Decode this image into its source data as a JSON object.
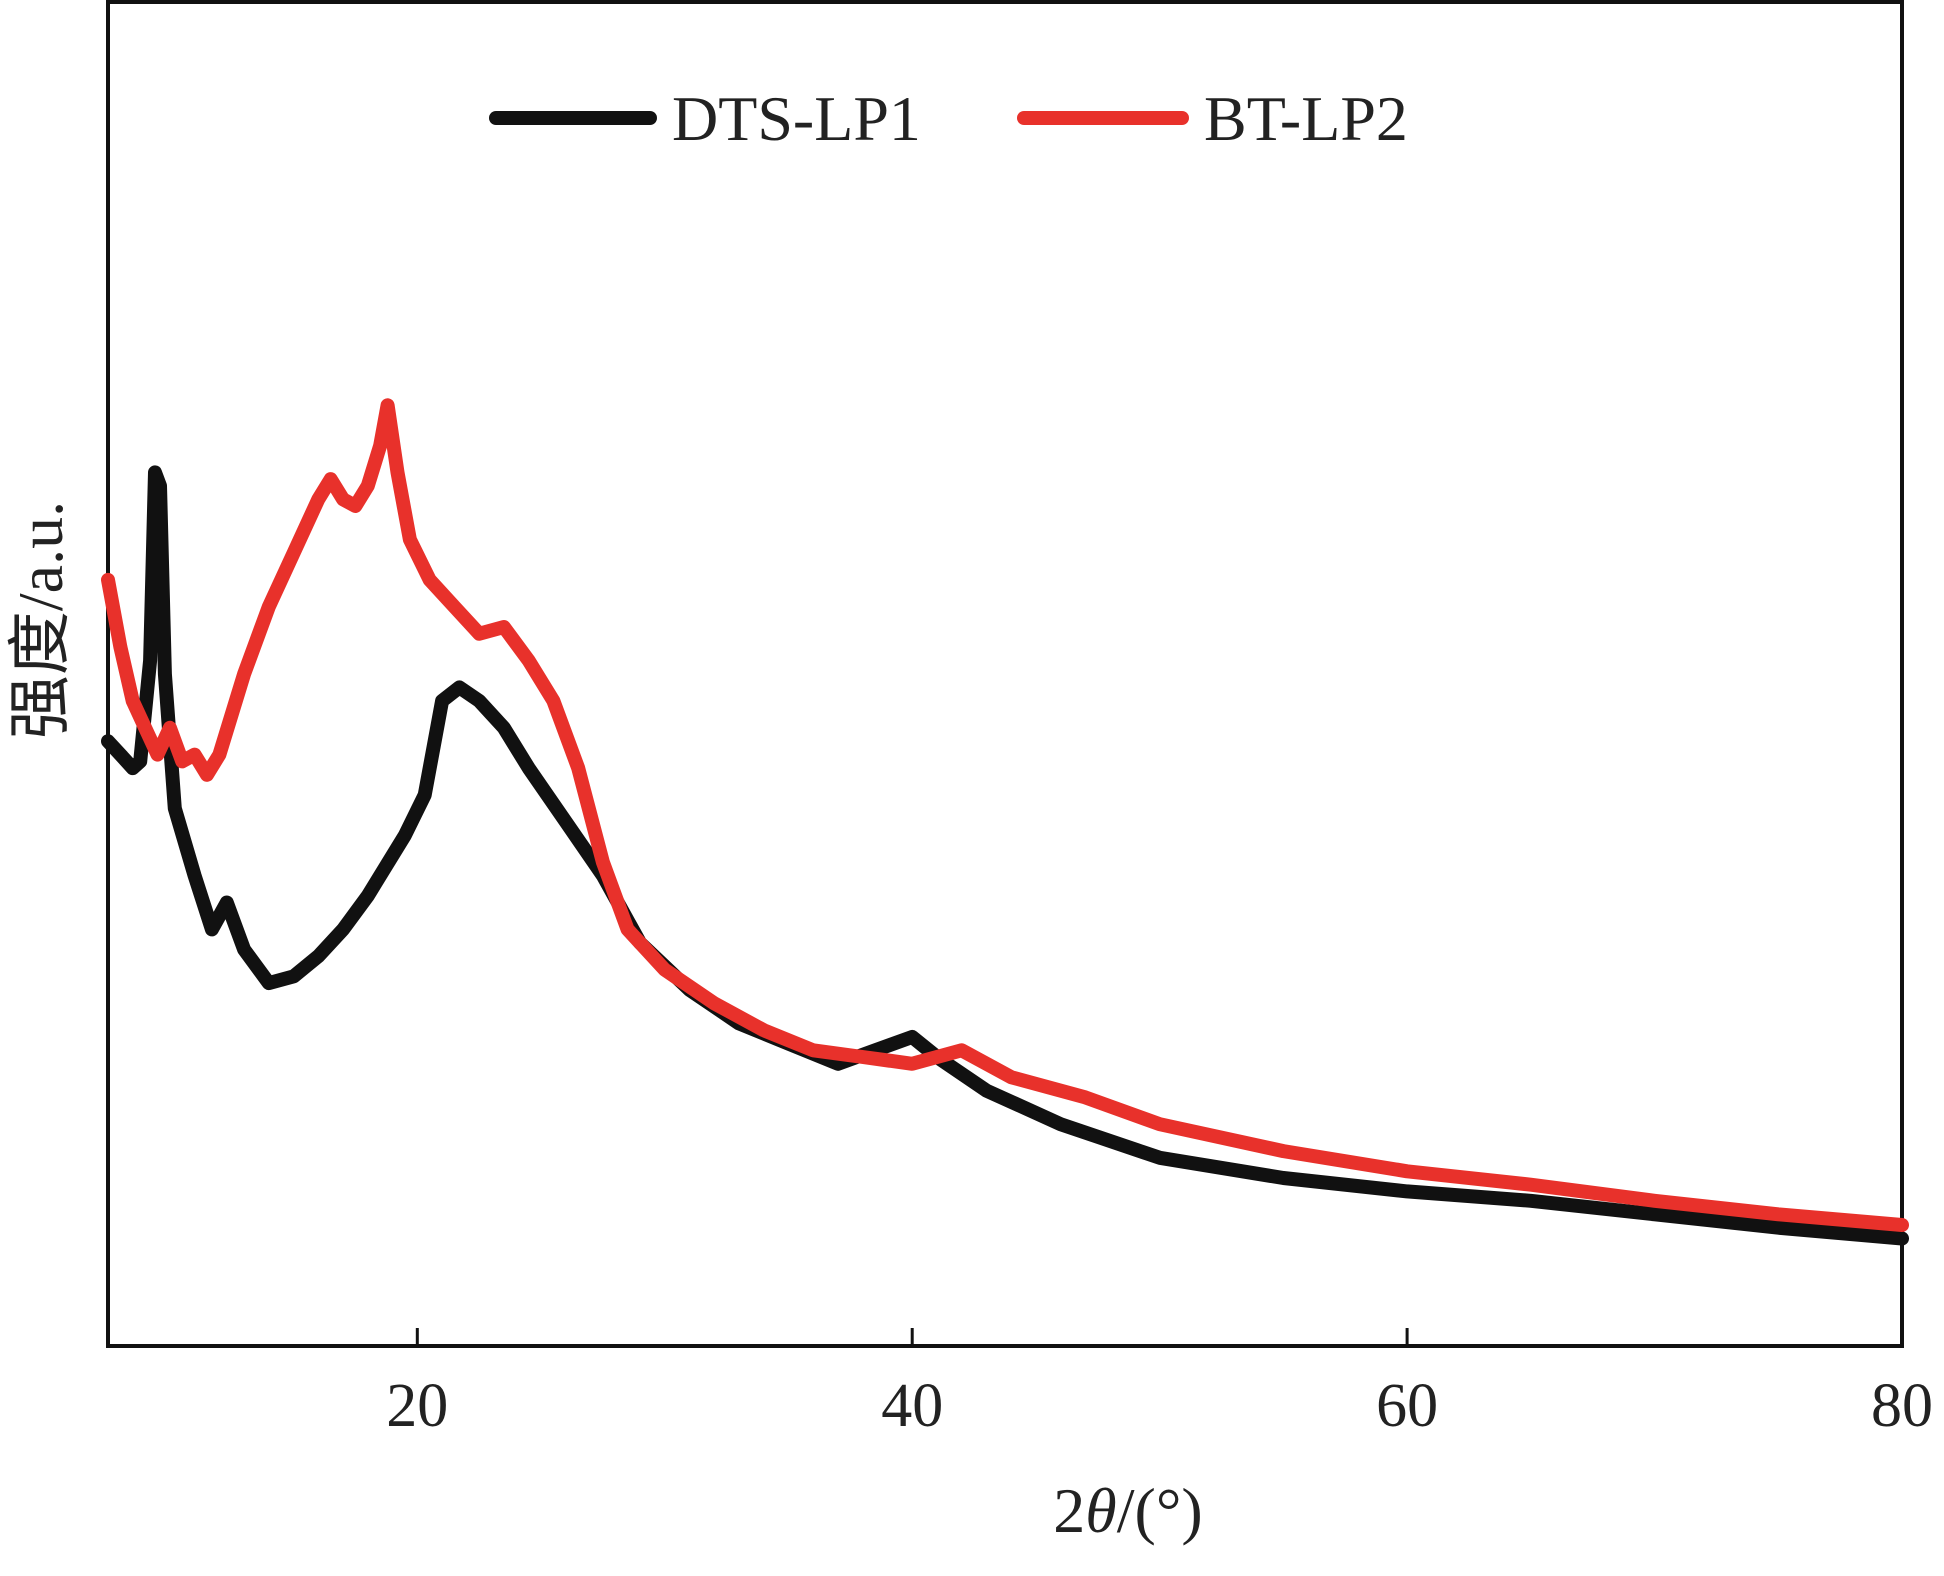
{
  "chart_data": {
    "type": "line",
    "title": "",
    "xlabel_prefix": "2",
    "xlabel_theta": "θ",
    "xlabel_suffix": "/(°)",
    "ylabel": "强度/a.u.",
    "xlim": [
      7.5,
      80
    ],
    "ylim": [
      0,
      100
    ],
    "x_ticks": [
      20,
      40,
      60,
      80
    ],
    "y_ticks_shown": false,
    "grid": false,
    "legend_position": "top-center",
    "series": [
      {
        "name": "DTS-LP1",
        "color": "#111111",
        "points": [
          [
            7.5,
            45
          ],
          [
            8.0,
            44
          ],
          [
            8.5,
            43
          ],
          [
            8.8,
            43.5
          ],
          [
            9.2,
            51
          ],
          [
            9.4,
            65
          ],
          [
            9.6,
            64
          ],
          [
            9.8,
            50
          ],
          [
            10.2,
            40
          ],
          [
            11.0,
            35
          ],
          [
            11.7,
            31
          ],
          [
            12.3,
            33
          ],
          [
            13.0,
            29.5
          ],
          [
            14.0,
            27
          ],
          [
            15.0,
            27.5
          ],
          [
            16.0,
            29
          ],
          [
            17.0,
            31
          ],
          [
            18.0,
            33.5
          ],
          [
            19.5,
            38
          ],
          [
            20.3,
            41
          ],
          [
            21.0,
            48
          ],
          [
            21.7,
            49
          ],
          [
            22.5,
            48
          ],
          [
            23.5,
            46
          ],
          [
            24.5,
            43
          ],
          [
            26.0,
            39
          ],
          [
            27.5,
            35
          ],
          [
            29.0,
            30
          ],
          [
            31.0,
            26.5
          ],
          [
            33.0,
            24
          ],
          [
            35.0,
            22.5
          ],
          [
            37.0,
            21
          ],
          [
            38.5,
            22
          ],
          [
            40.0,
            23
          ],
          [
            41.0,
            21.5
          ],
          [
            43.0,
            19
          ],
          [
            46.0,
            16.5
          ],
          [
            50.0,
            14
          ],
          [
            55.0,
            12.5
          ],
          [
            60.0,
            11.5
          ],
          [
            65.0,
            10.8
          ],
          [
            70.0,
            9.8
          ],
          [
            75.0,
            8.8
          ],
          [
            80.0,
            8
          ]
        ]
      },
      {
        "name": "BT-LP2",
        "color": "#e8312b",
        "points": [
          [
            7.5,
            57
          ],
          [
            8.0,
            52
          ],
          [
            8.5,
            48
          ],
          [
            9.0,
            46
          ],
          [
            9.5,
            44
          ],
          [
            10.0,
            46
          ],
          [
            10.5,
            43.5
          ],
          [
            11.0,
            44
          ],
          [
            11.5,
            42.5
          ],
          [
            12.0,
            44
          ],
          [
            13.0,
            50
          ],
          [
            14.0,
            55
          ],
          [
            15.0,
            59
          ],
          [
            16.0,
            63
          ],
          [
            16.5,
            64.5
          ],
          [
            17.0,
            63
          ],
          [
            17.5,
            62.5
          ],
          [
            18.0,
            64
          ],
          [
            18.5,
            67
          ],
          [
            18.8,
            70
          ],
          [
            19.2,
            65
          ],
          [
            19.7,
            60
          ],
          [
            20.5,
            57
          ],
          [
            21.5,
            55
          ],
          [
            22.5,
            53
          ],
          [
            23.5,
            53.5
          ],
          [
            24.5,
            51
          ],
          [
            25.5,
            48
          ],
          [
            26.5,
            43
          ],
          [
            27.5,
            36
          ],
          [
            28.5,
            31
          ],
          [
            30.0,
            28
          ],
          [
            32.0,
            25.5
          ],
          [
            34.0,
            23.5
          ],
          [
            36.0,
            22
          ],
          [
            38.0,
            21.5
          ],
          [
            40.0,
            21
          ],
          [
            42.0,
            22
          ],
          [
            44.0,
            20
          ],
          [
            47.0,
            18.5
          ],
          [
            50.0,
            16.5
          ],
          [
            55.0,
            14.5
          ],
          [
            60.0,
            13
          ],
          [
            65.0,
            12
          ],
          [
            70.0,
            10.8
          ],
          [
            75.0,
            9.8
          ],
          [
            80.0,
            9
          ]
        ]
      }
    ]
  }
}
